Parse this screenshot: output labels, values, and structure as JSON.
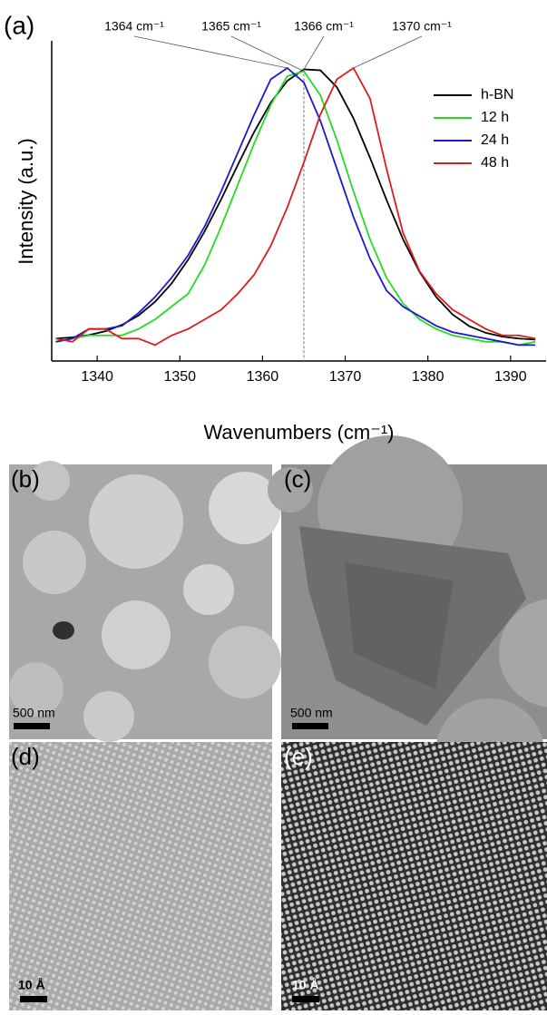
{
  "chart_data": {
    "type": "line",
    "panel_label": "(a)",
    "x_label": "Wavenumbers (cm⁻¹)",
    "y_label": "Intensity (a.u.)",
    "xlim": [
      1334.5,
      1394.3
    ],
    "xticks": [
      1340,
      1350,
      1360,
      1370,
      1380,
      1390
    ],
    "ylim": [
      0,
      1
    ],
    "legend": "upper right",
    "x": [
      1335,
      1337,
      1339,
      1341,
      1343,
      1345,
      1347,
      1349,
      1351,
      1353,
      1355,
      1357,
      1359,
      1361,
      1363,
      1365,
      1367,
      1369,
      1371,
      1373,
      1375,
      1377,
      1379,
      1381,
      1383,
      1385,
      1387,
      1389,
      1391,
      1393
    ],
    "series": [
      {
        "name": "h-BN",
        "color": "#000000",
        "peak_label": "1366 cm⁻¹",
        "dashed_peak_line": true,
        "values": [
          0.07,
          0.074,
          0.081,
          0.093,
          0.113,
          0.142,
          0.185,
          0.242,
          0.316,
          0.405,
          0.505,
          0.612,
          0.716,
          0.807,
          0.875,
          0.911,
          0.908,
          0.855,
          0.758,
          0.635,
          0.503,
          0.38,
          0.278,
          0.2,
          0.145,
          0.109,
          0.088,
          0.076,
          0.07,
          0.067
        ]
      },
      {
        "name": "12 h",
        "color": "#22dd22",
        "peak_label": "1365 cm⁻¹",
        "values": [
          0.06,
          0.07,
          0.08,
          0.08,
          0.08,
          0.1,
          0.13,
          0.17,
          0.21,
          0.3,
          0.42,
          0.55,
          0.68,
          0.8,
          0.89,
          0.905,
          0.83,
          0.69,
          0.53,
          0.38,
          0.26,
          0.18,
          0.13,
          0.1,
          0.08,
          0.07,
          0.06,
          0.06,
          0.05,
          0.06
        ]
      },
      {
        "name": "24 h",
        "color": "#1a1acc",
        "peak_label": "1364 cm⁻¹",
        "values": [
          0.06,
          0.07,
          0.1,
          0.1,
          0.11,
          0.15,
          0.2,
          0.26,
          0.33,
          0.42,
          0.53,
          0.65,
          0.77,
          0.88,
          0.915,
          0.87,
          0.75,
          0.6,
          0.45,
          0.32,
          0.22,
          0.17,
          0.14,
          0.11,
          0.09,
          0.08,
          0.07,
          0.06,
          0.05,
          0.05
        ]
      },
      {
        "name": "48 h",
        "color": "#dd1c1c",
        "peak_label": "1370 cm⁻¹",
        "values": [
          0.07,
          0.06,
          0.1,
          0.1,
          0.07,
          0.07,
          0.05,
          0.08,
          0.1,
          0.13,
          0.16,
          0.21,
          0.27,
          0.36,
          0.48,
          0.62,
          0.77,
          0.88,
          0.915,
          0.82,
          0.6,
          0.4,
          0.28,
          0.21,
          0.16,
          0.13,
          0.1,
          0.08,
          0.08,
          0.07
        ]
      }
    ]
  },
  "images": [
    {
      "label": "(b)",
      "scale_bar": "500 nm"
    },
    {
      "label": "(c)",
      "scale_bar": "500 nm"
    },
    {
      "label": "(d)",
      "scale_bar": "10 Å"
    },
    {
      "label": "(e)",
      "scale_bar": "10 Å"
    }
  ]
}
